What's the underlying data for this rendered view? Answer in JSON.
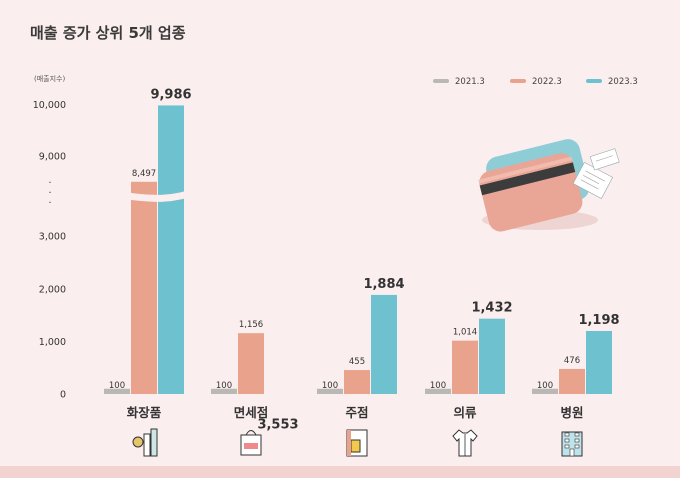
{
  "title": "매출 증가 상위 5개 업종",
  "unit_label": "(매출지수)",
  "colors": {
    "s2021": "#b9b8b4",
    "s2022": "#e9a28c",
    "s2023": "#6ec1cf",
    "background": "#fbeeee"
  },
  "chart_data": {
    "type": "bar",
    "title": "매출 증가 상위 5개 업종",
    "ylabel": "(매출지수)",
    "categories": [
      "화장품",
      "면세점",
      "주점",
      "의류",
      "병원"
    ],
    "category_icons": [
      "cosmetics-icon",
      "duty-free-bag-icon",
      "beer-menu-icon",
      "shirt-icon",
      "hospital-building-icon"
    ],
    "series": [
      {
        "name": "2021.3",
        "values": [
          100,
          100,
          100,
          100,
          100
        ],
        "value_labels": [
          "100",
          "100",
          "100",
          "100",
          "100"
        ]
      },
      {
        "name": "2022.3",
        "values": [
          8497,
          1156,
          455,
          1014,
          476
        ],
        "value_labels": [
          "8,497",
          "1,156",
          "455",
          "1,014",
          "476"
        ]
      },
      {
        "name": "2023.3",
        "values": [
          9986,
          3553,
          1884,
          1432,
          1198
        ],
        "value_labels": [
          "9,986",
          "3,553",
          "1,884",
          "1,432",
          "1,198"
        ]
      }
    ],
    "yticks": [
      "0",
      "1,000",
      "2,000",
      "3,000",
      "9,000",
      "10,000"
    ],
    "ytick_values": [
      0,
      1000,
      2000,
      3000,
      9000,
      10000
    ],
    "axis_break": [
      3000,
      9000
    ],
    "axis_break_marks": [
      "·",
      "·",
      "·"
    ],
    "legend_position": "top-right",
    "grid": false
  }
}
